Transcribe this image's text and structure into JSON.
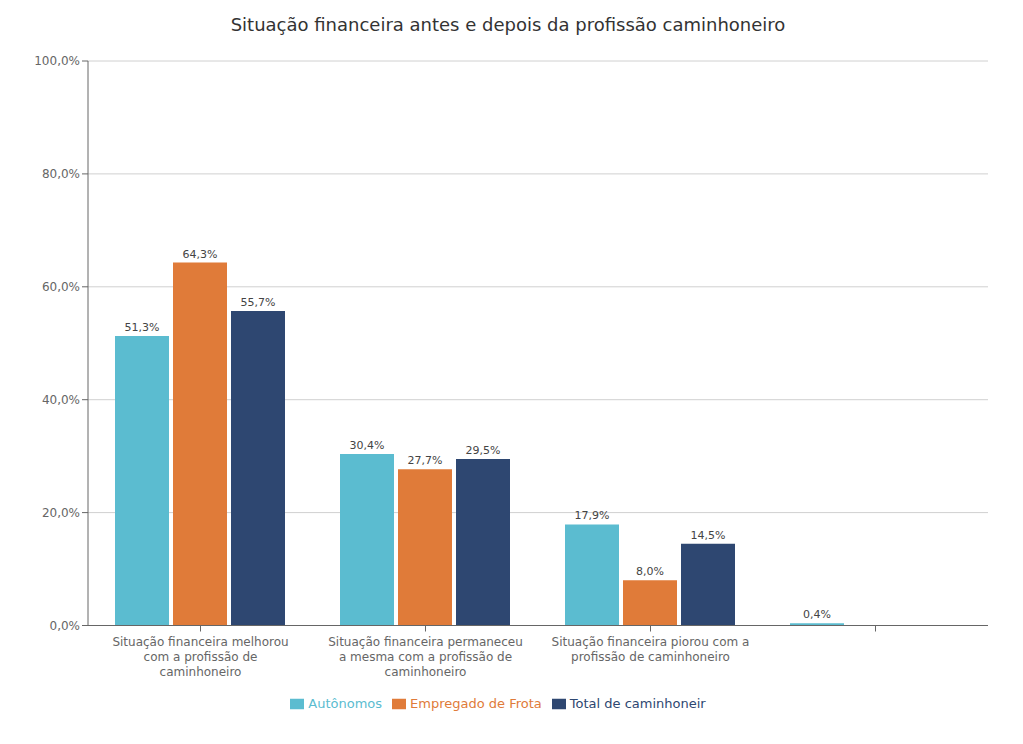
{
  "chart_data": {
    "type": "bar",
    "title": "Situação financeira antes e depois da profissão caminhoneiro",
    "categories": [
      "Situação financeira melhorou\ncom a profissão de\ncaminhoneiro",
      "Situação financeira permaneceu\na mesma com a profissão de\ncaminhoneiro",
      "Situação financeira piorou com a\nprofissão de caminhoneiro",
      null
    ],
    "series": [
      {
        "name": "Autônomos",
        "color": "#5bbcd0",
        "values": [
          51.3,
          30.4,
          17.9,
          0.4
        ],
        "value_labels": [
          "51,3%",
          "30,4%",
          "17,9%",
          "0,4%"
        ]
      },
      {
        "name": "Empregado de Frota",
        "color": "#e07b39",
        "values": [
          64.3,
          27.7,
          8.0,
          null
        ],
        "value_labels": [
          "64,3%",
          "27,7%",
          "8,0%",
          null
        ]
      },
      {
        "name": "Total de caminhoneir",
        "color": "#2e4771",
        "values": [
          55.7,
          29.5,
          14.5,
          null
        ],
        "value_labels": [
          "55,7%",
          "29,5%",
          "14,5%",
          null
        ]
      }
    ],
    "ylim": [
      0,
      100
    ],
    "yticks": [
      {
        "value": 0,
        "label": "0,0%"
      },
      {
        "value": 20,
        "label": "20,0%"
      },
      {
        "value": 40,
        "label": "40,0%"
      },
      {
        "value": 60,
        "label": "60,0%"
      },
      {
        "value": 80,
        "label": "80,0%"
      },
      {
        "value": 100,
        "label": "100,0%"
      }
    ],
    "grid": true,
    "legend": "bottom",
    "data_labels": true
  }
}
